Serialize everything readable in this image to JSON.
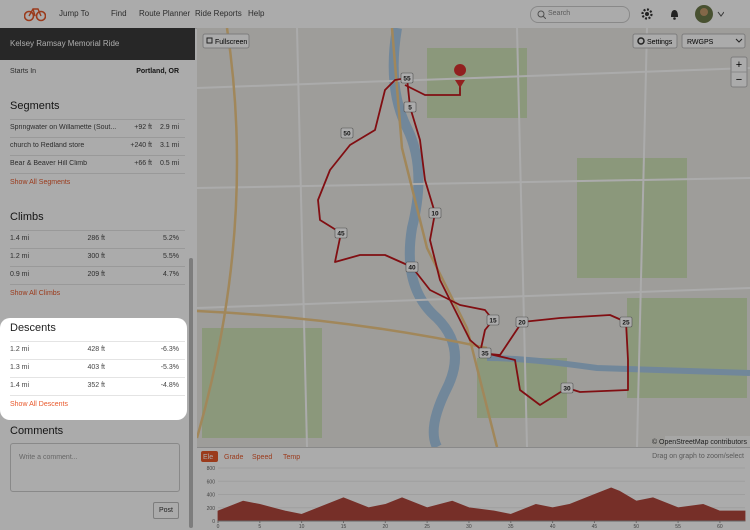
{
  "nav": {
    "items": [
      "Jump To",
      "Find",
      "Route Planner",
      "Ride Reports",
      "Help"
    ],
    "search": "Search"
  },
  "sidebar": {
    "title": "Kelsey Ramsay Memorial Ride",
    "starts_label": "Starts In",
    "starts_value": "Portland, OR",
    "segments": {
      "heading": "Segments",
      "rows": [
        [
          "Springwater on Willamette (Sout...",
          "+92 ft",
          "2.9 mi"
        ],
        [
          "church to Redland store",
          "+240 ft",
          "3.1 mi"
        ],
        [
          "Bear & Beaver Hill Climb",
          "+66 ft",
          "0.5 mi"
        ]
      ],
      "link": "Show All Segments"
    },
    "climbs": {
      "heading": "Climbs",
      "rows": [
        [
          "1.4 mi",
          "286 ft",
          "5.2%"
        ],
        [
          "1.2 mi",
          "300 ft",
          "5.5%"
        ],
        [
          "0.9 mi",
          "209 ft",
          "4.7%"
        ]
      ],
      "link": "Show All Climbs"
    },
    "descents": {
      "heading": "Descents",
      "rows": [
        [
          "1.2 mi",
          "428 ft",
          "-6.3%"
        ],
        [
          "1.3 mi",
          "403 ft",
          "-5.3%"
        ],
        [
          "1.4 mi",
          "352 ft",
          "-4.8%"
        ]
      ],
      "link": "Show All Descents"
    },
    "comments": {
      "heading": "Comments",
      "placeholder": "Write a comment...",
      "button": "Post"
    }
  },
  "map": {
    "fullscreen": "Fullscreen",
    "settings": "Settings",
    "layer": "RWGPS",
    "zoom_in": "+",
    "zoom_out": "−",
    "attribution": "© OpenStreetMap contributors",
    "markers": [
      "55",
      "5",
      "50",
      "10",
      "45",
      "40",
      "15",
      "20",
      "25",
      "35",
      "30"
    ]
  },
  "elevation": {
    "tabs": [
      "Ele",
      "Grade",
      "Speed",
      "Temp"
    ],
    "hint": "Drag on graph to zoom/select",
    "type": "area",
    "x": [
      0,
      3,
      5,
      8,
      10,
      12,
      15,
      18,
      20,
      22,
      25,
      28,
      30,
      33,
      35,
      38,
      40,
      42,
      45,
      47,
      48,
      50,
      52,
      55,
      58,
      60,
      63
    ],
    "values": [
      150,
      300,
      250,
      150,
      100,
      200,
      350,
      200,
      250,
      350,
      200,
      300,
      200,
      150,
      100,
      250,
      200,
      250,
      400,
      500,
      450,
      300,
      350,
      200,
      250,
      150,
      150
    ],
    "xlim": [
      0,
      63
    ],
    "ylim": [
      0,
      800
    ],
    "xticks": [
      0,
      5,
      10,
      15,
      20,
      25,
      30,
      35,
      40,
      45,
      50,
      55,
      60
    ],
    "yticks": [
      0,
      200,
      400,
      600,
      800
    ],
    "color": "#b0463c"
  }
}
